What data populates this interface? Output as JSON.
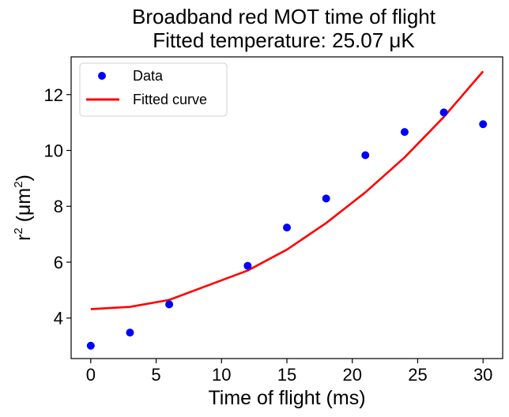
{
  "chart_data": {
    "type": "scatter",
    "title": "Broadband red MOT time of flight",
    "subtitle": "Fitted temperature: 25.07 μK",
    "xlabel": "Time of flight (ms)",
    "ylabel_base": "r",
    "ylabel_sup1": "2",
    "ylabel_mid": " (μm",
    "ylabel_sup2": "2",
    "ylabel_end": ")",
    "xlim": [
      -1.5,
      31.5
    ],
    "ylim": [
      2.55,
      13.35
    ],
    "xticks": [
      0,
      5,
      10,
      15,
      20,
      25,
      30
    ],
    "xtick_labels": [
      "0",
      "5",
      "10",
      "15",
      "20",
      "25",
      "30"
    ],
    "yticks": [
      4,
      6,
      8,
      10,
      12
    ],
    "ytick_labels": [
      "4",
      "6",
      "8",
      "10",
      "12"
    ],
    "grid": false,
    "legend_position": "top-left",
    "series": [
      {
        "name": "Data",
        "kind": "scatter",
        "color": "#0000ff",
        "x": [
          0,
          3,
          6,
          12,
          15,
          18,
          21,
          24,
          27,
          30
        ],
        "y": [
          3.01,
          3.48,
          4.49,
          5.87,
          7.24,
          8.28,
          9.83,
          10.66,
          11.36,
          10.94
        ]
      },
      {
        "name": "Fitted curve",
        "kind": "line",
        "color": "#ff0000",
        "x": [
          0,
          3,
          6,
          12,
          15,
          18,
          21,
          24,
          27,
          30
        ],
        "y": [
          4.32,
          4.4,
          4.65,
          5.7,
          6.45,
          7.4,
          8.5,
          9.75,
          11.2,
          12.83
        ]
      }
    ]
  }
}
